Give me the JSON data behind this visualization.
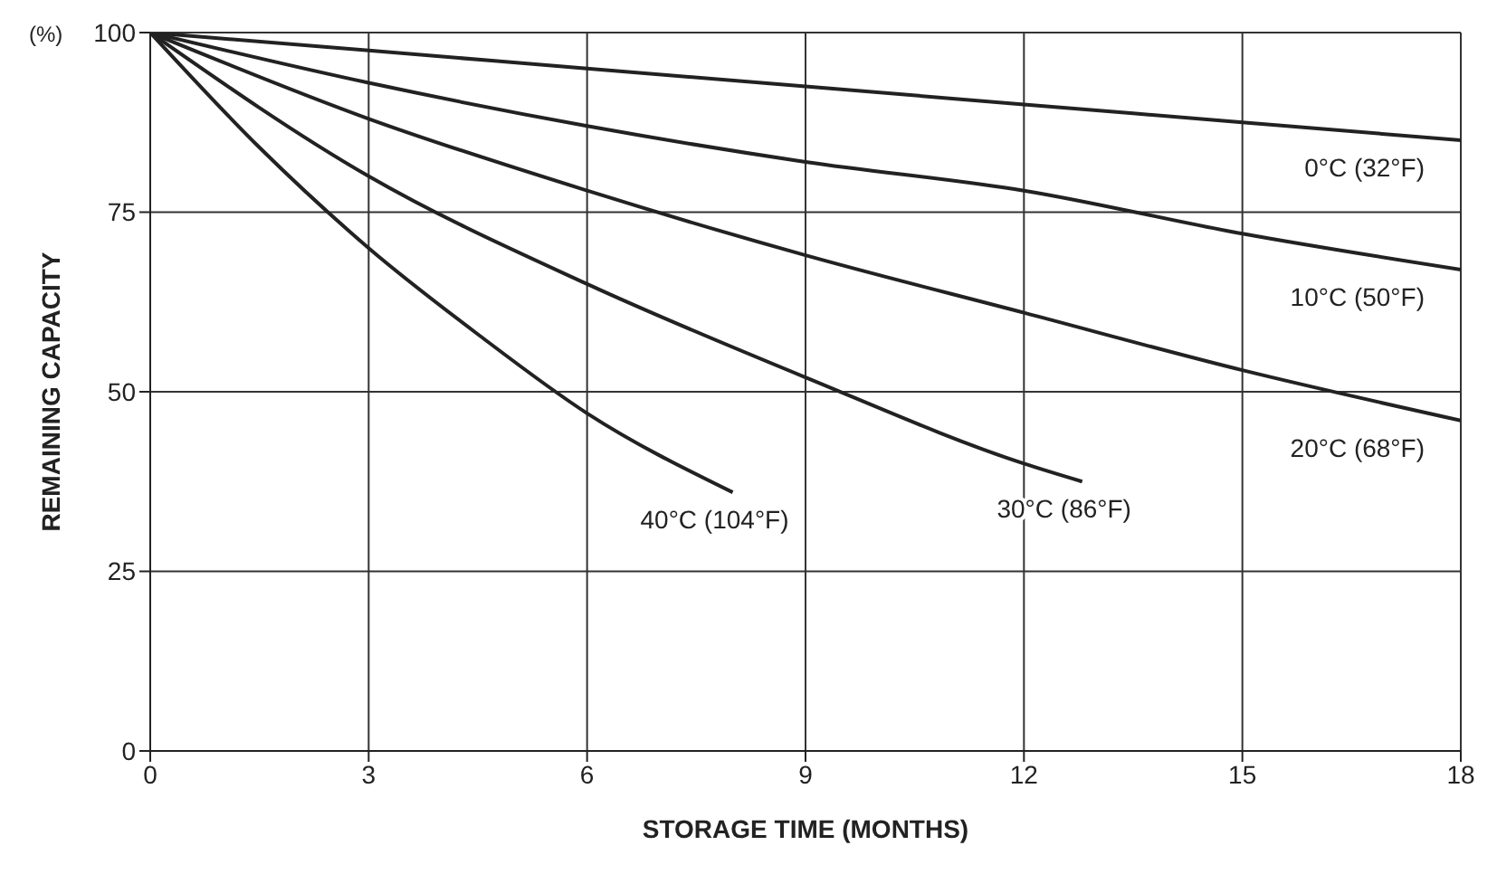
{
  "chart_data": {
    "type": "line",
    "xlabel": "STORAGE TIME (MONTHS)",
    "ylabel": "REMAINING CAPACITY",
    "annotations": [
      "(%)"
    ],
    "xlim": [
      0,
      18
    ],
    "xticks": [
      0,
      3,
      6,
      9,
      12,
      15,
      18
    ],
    "ylim": [
      0,
      100
    ],
    "yticks": [
      0,
      25,
      50,
      75,
      100
    ],
    "grid": true,
    "marker": "none",
    "line_style": "solid",
    "series": [
      {
        "name": "0°C (32°F)",
        "color": "#222222",
        "x": [
          0,
          3,
          6,
          9,
          12,
          15,
          18
        ],
        "values": [
          100,
          97.5,
          95,
          92.5,
          90,
          87.5,
          85
        ]
      },
      {
        "name": "10°C (50°F)",
        "color": "#222222",
        "x": [
          0,
          3,
          6,
          9,
          12,
          15,
          18
        ],
        "values": [
          100,
          93,
          87,
          82,
          78,
          72,
          67
        ]
      },
      {
        "name": "20°C (68°F)",
        "color": "#222222",
        "x": [
          0,
          3,
          6,
          9,
          12,
          15,
          18
        ],
        "values": [
          100,
          88,
          78,
          69,
          61,
          53,
          46
        ]
      },
      {
        "name": "30°C (86°F)",
        "color": "#222222",
        "x": [
          0,
          3,
          6,
          9,
          12,
          12.8
        ],
        "values": [
          100,
          80,
          65,
          52,
          40,
          37.5
        ]
      },
      {
        "name": "40°C (104°F)",
        "color": "#222222",
        "x": [
          0,
          1.5,
          3,
          4.5,
          6,
          8
        ],
        "values": [
          100,
          84,
          70,
          58,
          47,
          36
        ]
      }
    ]
  }
}
